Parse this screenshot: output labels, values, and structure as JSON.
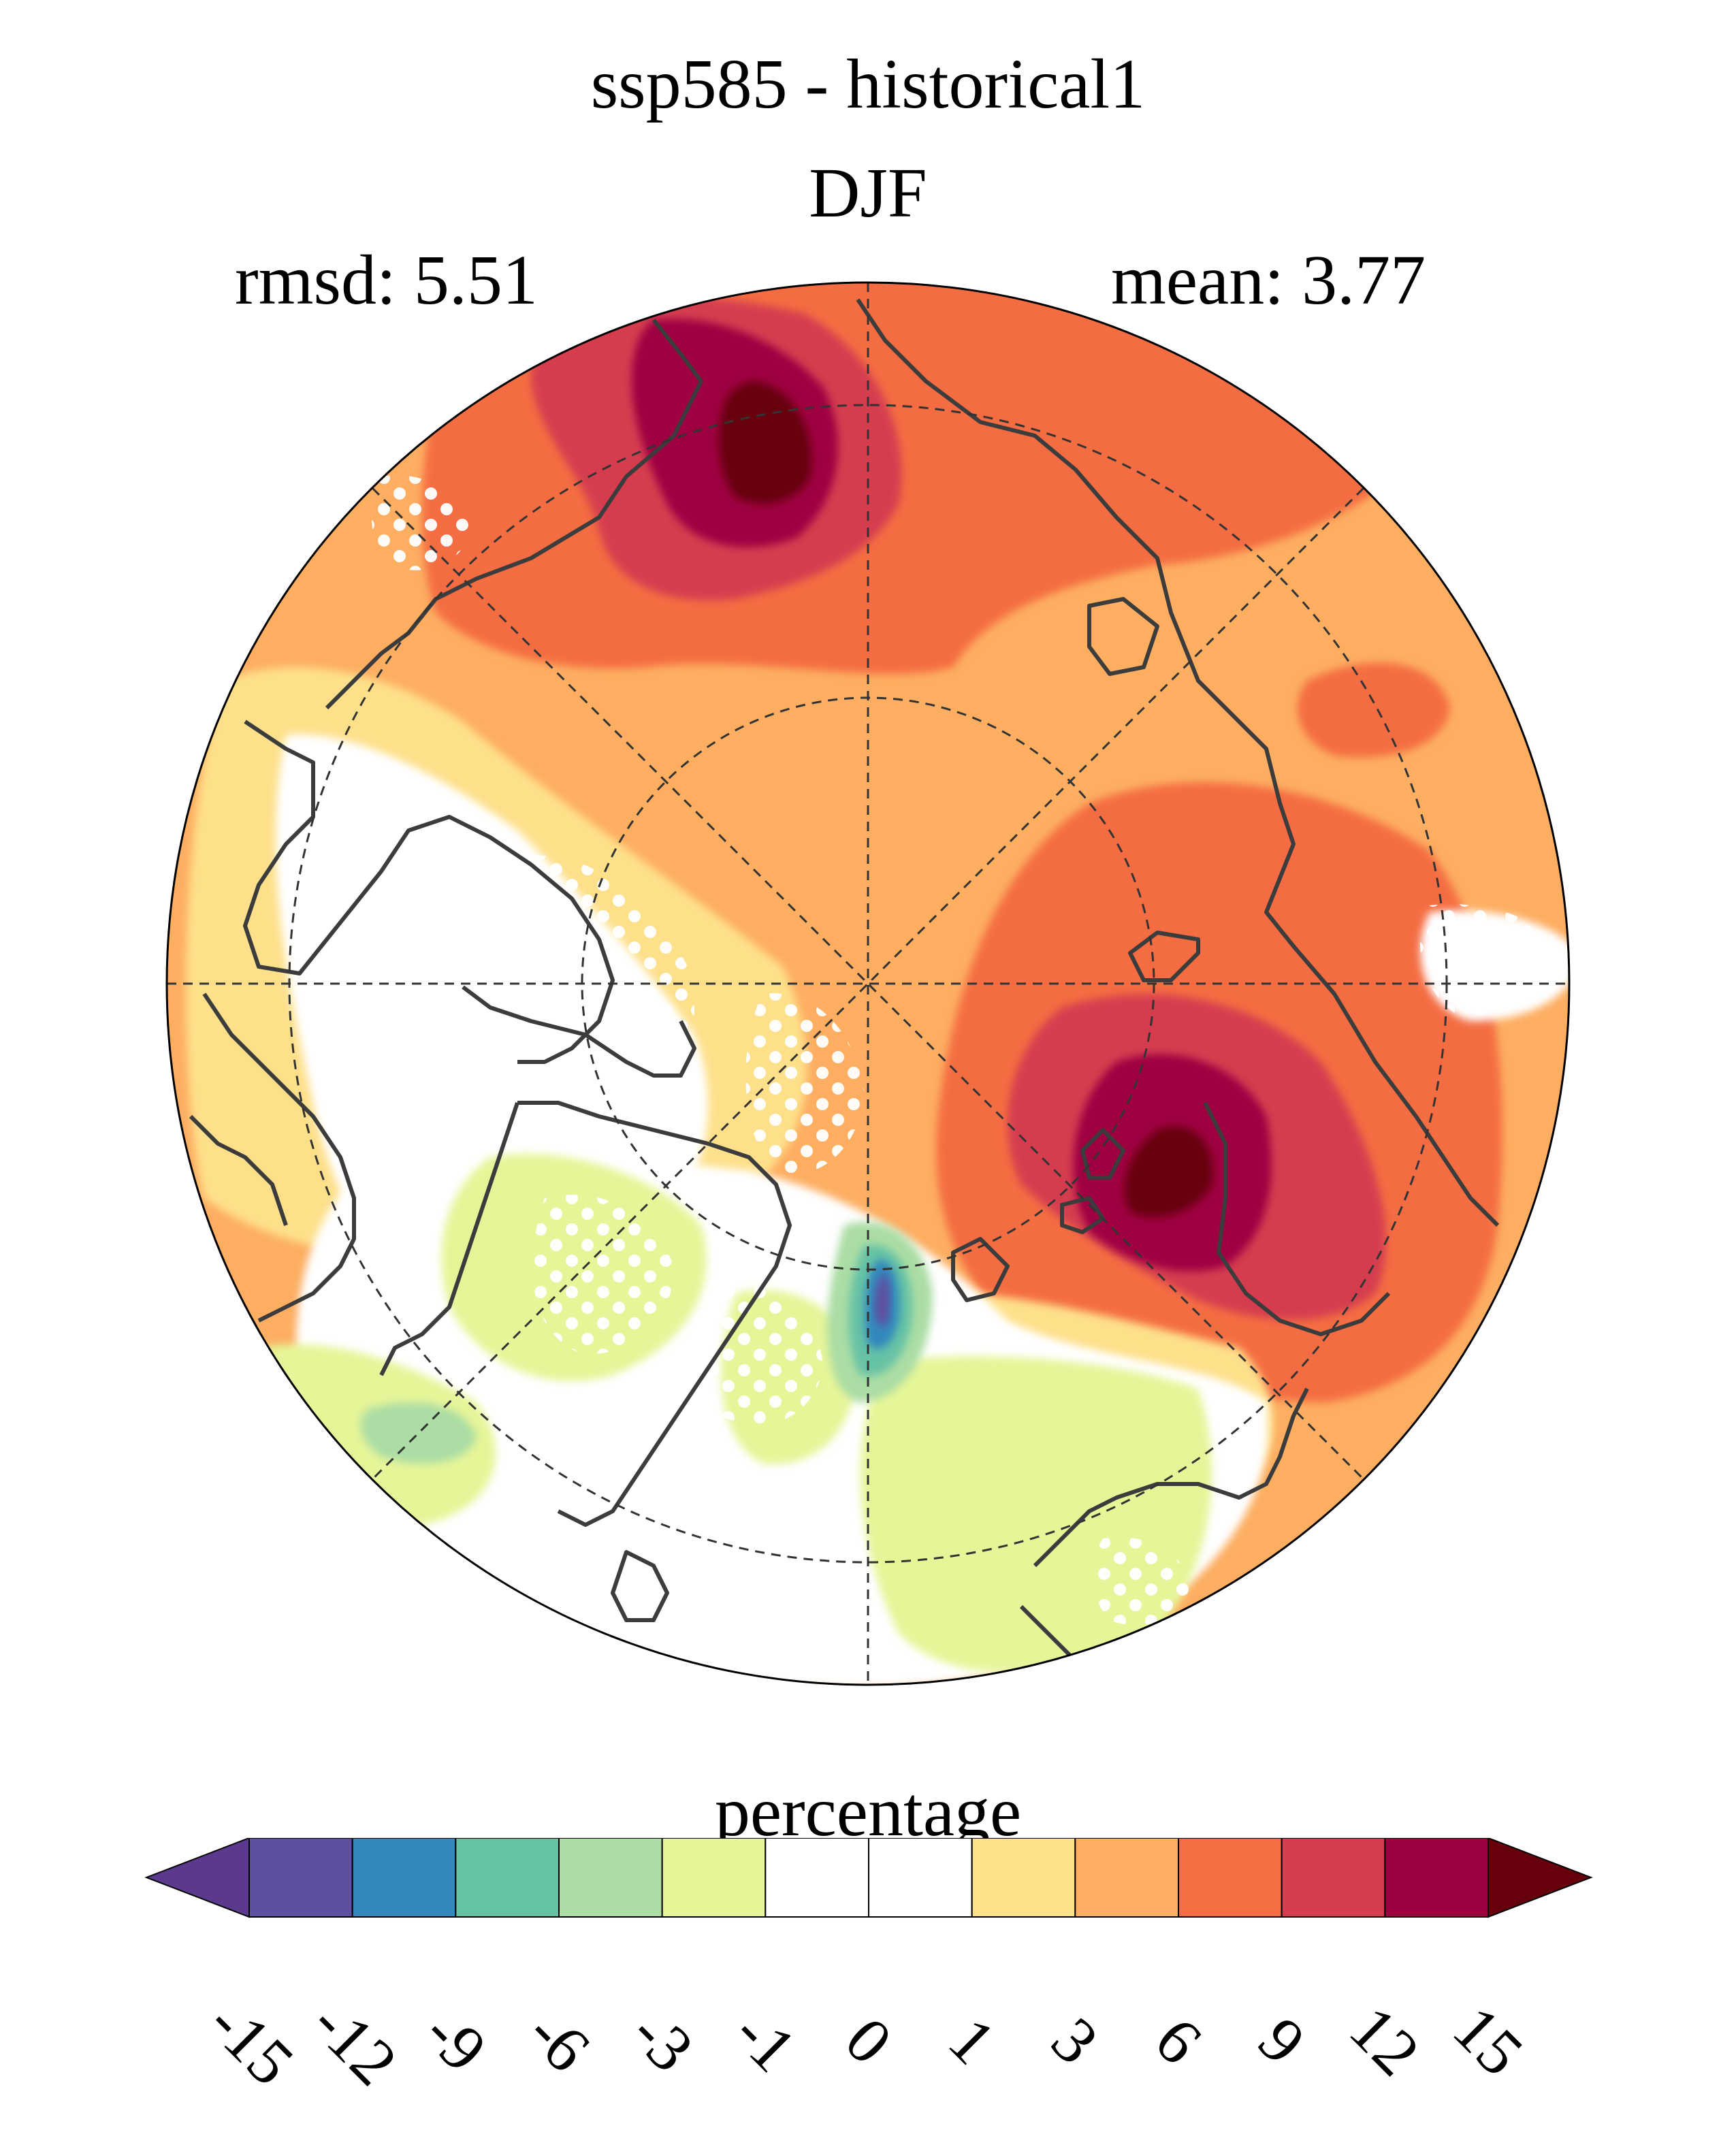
{
  "figure": {
    "title_line1": "ssp585 - historical1",
    "title_line2": "DJF",
    "rmsd_label": "rmsd: 5.51",
    "mean_label": "mean: 3.77"
  },
  "colorbar": {
    "label": "percentage",
    "levels": [
      "-15",
      "-12",
      "-9",
      "-6",
      "-3",
      "-1",
      "0",
      "1",
      "3",
      "6",
      "9",
      "12",
      "15"
    ],
    "colors": [
      "#5e4fa2",
      "#3288bd",
      "#66c2a5",
      "#abdda4",
      "#e6f598",
      "#ffffff",
      "#ffffff",
      "#fee08b",
      "#fdae61",
      "#f46d43",
      "#d53e4f",
      "#9e0142"
    ],
    "under_color": "#5b3a8e",
    "over_color": "#67000d"
  },
  "map": {
    "projection": "north-polar-stereographic",
    "features": [
      "coastlines",
      "graticule",
      "significance-stippling"
    ],
    "palette": {
      "strong_positive": "#9e0142",
      "extreme_positive": "#67000d",
      "high_positive": "#d53e4f",
      "moderate_positive": "#f46d43",
      "low_positive": "#fdae61",
      "slight_positive": "#fee08b",
      "neutral": "#ffffff",
      "slight_negative": "#e6f598",
      "low_negative": "#abdda4",
      "mid_negative": "#66c2a5",
      "high_negative": "#3288bd",
      "strong_negative": "#5e4fa2"
    }
  }
}
